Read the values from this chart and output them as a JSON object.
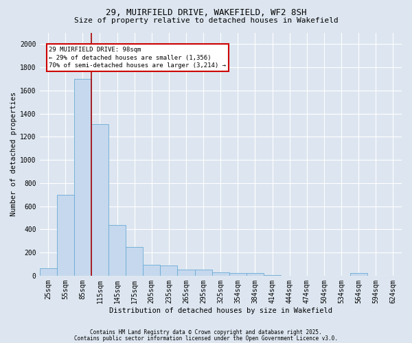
{
  "title1": "29, MUIRFIELD DRIVE, WAKEFIELD, WF2 8SH",
  "title2": "Size of property relative to detached houses in Wakefield",
  "xlabel": "Distribution of detached houses by size in Wakefield",
  "ylabel": "Number of detached properties",
  "bar_color": "#c5d8ee",
  "bar_edge_color": "#6aaad4",
  "bg_color": "#dde6f0",
  "fig_bg_color": "#dde6f0",
  "categories": [
    "25sqm",
    "55sqm",
    "85sqm",
    "115sqm",
    "145sqm",
    "175sqm",
    "205sqm",
    "235sqm",
    "265sqm",
    "295sqm",
    "325sqm",
    "354sqm",
    "384sqm",
    "414sqm",
    "444sqm",
    "474sqm",
    "504sqm",
    "534sqm",
    "564sqm",
    "594sqm",
    "624sqm"
  ],
  "values": [
    65,
    700,
    1700,
    1310,
    440,
    250,
    95,
    85,
    50,
    50,
    30,
    25,
    20,
    5,
    0,
    0,
    0,
    0,
    20,
    0,
    0
  ],
  "annotation_line1": "29 MUIRFIELD DRIVE: 98sqm",
  "annotation_line2": "← 29% of detached houses are smaller (1,356)",
  "annotation_line3": "70% of semi-detached houses are larger (3,214) →",
  "annotation_box_color": "#ffffff",
  "annotation_border_color": "#cc0000",
  "red_line_color": "#aa0000",
  "red_line_x": 2.5,
  "ylim": [
    0,
    2100
  ],
  "yticks": [
    0,
    200,
    400,
    600,
    800,
    1000,
    1200,
    1400,
    1600,
    1800,
    2000
  ],
  "footer1": "Contains HM Land Registry data © Crown copyright and database right 2025.",
  "footer2": "Contains public sector information licensed under the Open Government Licence v3.0.",
  "title_fontsize": 9,
  "subtitle_fontsize": 8,
  "axis_label_fontsize": 7.5,
  "tick_fontsize": 7,
  "footer_fontsize": 5.5,
  "annot_fontsize": 6.5
}
